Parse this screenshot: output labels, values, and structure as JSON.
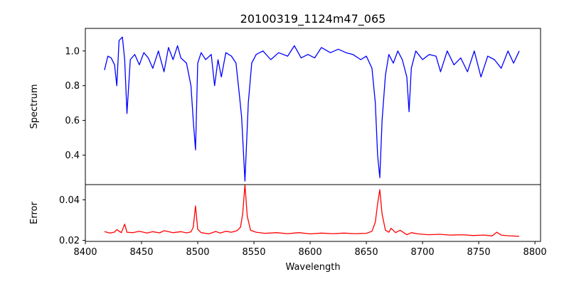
{
  "chart_data": [
    {
      "type": "line",
      "title": "20100319_1124m47_065",
      "xlabel": "",
      "ylabel": "Spectrum",
      "xlim": [
        8400,
        8805
      ],
      "ylim": [
        0.23,
        1.13
      ],
      "yticks": [
        "0.4",
        "0.6",
        "0.8",
        "1.0"
      ],
      "grid": false,
      "series": [
        {
          "color": "#0000ff",
          "x": [
            8417,
            8420,
            8423,
            8426,
            8428,
            8430,
            8433,
            8435,
            8437,
            8440,
            8444,
            8448,
            8452,
            8456,
            8460,
            8465,
            8470,
            8474,
            8478,
            8482,
            8485,
            8490,
            8494,
            8496,
            8498,
            8500,
            8503,
            8507,
            8512,
            8515,
            8518,
            8521,
            8525,
            8530,
            8534,
            8537,
            8539,
            8542,
            8545,
            8548,
            8552,
            8558,
            8565,
            8572,
            8580,
            8586,
            8592,
            8598,
            8604,
            8610,
            8618,
            8625,
            8632,
            8638,
            8645,
            8650,
            8655,
            8658,
            8660,
            8662,
            8664,
            8667,
            8670,
            8674,
            8678,
            8682,
            8686,
            8688,
            8690,
            8694,
            8700,
            8706,
            8712,
            8716,
            8722,
            8728,
            8734,
            8740,
            8746,
            8752,
            8758,
            8764,
            8770,
            8776,
            8781,
            8786
          ],
          "y": [
            0.89,
            0.97,
            0.96,
            0.92,
            0.8,
            1.06,
            1.08,
            0.95,
            0.64,
            0.95,
            0.98,
            0.92,
            0.99,
            0.96,
            0.9,
            1.0,
            0.88,
            1.02,
            0.95,
            1.03,
            0.96,
            0.93,
            0.8,
            0.6,
            0.43,
            0.93,
            0.99,
            0.95,
            0.98,
            0.8,
            0.95,
            0.85,
            0.99,
            0.97,
            0.93,
            0.75,
            0.62,
            0.25,
            0.7,
            0.93,
            0.98,
            1.0,
            0.95,
            0.99,
            0.97,
            1.03,
            0.96,
            0.98,
            0.96,
            1.02,
            0.99,
            1.01,
            0.99,
            0.98,
            0.95,
            0.97,
            0.9,
            0.7,
            0.4,
            0.27,
            0.6,
            0.86,
            0.98,
            0.93,
            1.0,
            0.95,
            0.85,
            0.65,
            0.9,
            1.0,
            0.95,
            0.98,
            0.97,
            0.88,
            1.0,
            0.92,
            0.96,
            0.88,
            1.0,
            0.85,
            0.97,
            0.95,
            0.9,
            1.0,
            0.93,
            1.0
          ]
        }
      ]
    },
    {
      "type": "line",
      "title": "",
      "xlabel": "Wavelength",
      "ylabel": "Error",
      "xlim": [
        8400,
        8805
      ],
      "ylim": [
        0.0195,
        0.0475
      ],
      "yticks": [
        "0.02",
        "0.04"
      ],
      "xticks": [
        "8400",
        "8450",
        "8500",
        "8550",
        "8600",
        "8650",
        "8700",
        "8750",
        "8800"
      ],
      "grid": false,
      "series": [
        {
          "color": "#ff0000",
          "x": [
            8417,
            8422,
            8426,
            8428,
            8432,
            8435,
            8437,
            8442,
            8448,
            8455,
            8460,
            8466,
            8470,
            8478,
            8485,
            8490,
            8494,
            8496,
            8498,
            8500,
            8503,
            8510,
            8516,
            8520,
            8525,
            8530,
            8535,
            8538,
            8540,
            8542,
            8544,
            8547,
            8552,
            8560,
            8570,
            8580,
            8590,
            8600,
            8610,
            8620,
            8630,
            8640,
            8650,
            8655,
            8658,
            8660,
            8662,
            8664,
            8667,
            8670,
            8672,
            8676,
            8680,
            8686,
            8690,
            8696,
            8705,
            8715,
            8725,
            8735,
            8745,
            8755,
            8762,
            8766,
            8770,
            8776,
            8786
          ],
          "y": [
            0.0243,
            0.0236,
            0.0241,
            0.0253,
            0.0238,
            0.028,
            0.024,
            0.0238,
            0.0245,
            0.0236,
            0.0243,
            0.0237,
            0.0248,
            0.0238,
            0.0243,
            0.0237,
            0.0242,
            0.0265,
            0.037,
            0.0255,
            0.0238,
            0.0232,
            0.0244,
            0.0236,
            0.0245,
            0.024,
            0.0248,
            0.0265,
            0.033,
            0.0475,
            0.032,
            0.025,
            0.024,
            0.0235,
            0.0238,
            0.0233,
            0.0238,
            0.0232,
            0.0236,
            0.0233,
            0.0236,
            0.0233,
            0.0235,
            0.0245,
            0.029,
            0.038,
            0.045,
            0.033,
            0.025,
            0.024,
            0.026,
            0.0238,
            0.025,
            0.0228,
            0.0238,
            0.0232,
            0.0228,
            0.023,
            0.0226,
            0.0228,
            0.0224,
            0.0226,
            0.0222,
            0.024,
            0.0226,
            0.0223,
            0.022
          ]
        }
      ]
    }
  ]
}
